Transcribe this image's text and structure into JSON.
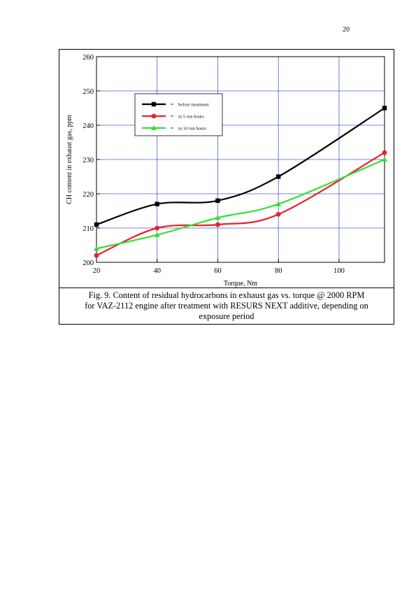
{
  "page": {
    "number": "20"
  },
  "caption": {
    "line1": "Fig. 9. Content of residual hydrocarbons in exhaust gas vs. torque @ 2000 RPM",
    "line2": "for VAZ-2112 engine after treatment with RESURS NEXT additive, depending on",
    "line3": "exposure period"
  },
  "chart_data": {
    "type": "line",
    "title": "",
    "xlabel": "Torque, Nm",
    "ylabel": "CH content in exhaust gas, ppm",
    "xlim": [
      20,
      115
    ],
    "ylim": [
      200,
      260
    ],
    "x_ticks": [
      20,
      40,
      60,
      80,
      100
    ],
    "y_ticks": [
      200,
      210,
      220,
      230,
      240,
      250,
      260
    ],
    "grid": true,
    "legend_position": "top-left",
    "series": [
      {
        "name": "before treatment",
        "color": "#000000",
        "marker": "square",
        "x": [
          20,
          40,
          60,
          80,
          115
        ],
        "values": [
          211,
          217,
          218,
          225,
          245
        ]
      },
      {
        "name": "in 5 run hours",
        "color": "#e8202a",
        "marker": "circle",
        "x": [
          20,
          40,
          60,
          80,
          115
        ],
        "values": [
          202,
          210,
          211,
          214,
          232
        ]
      },
      {
        "name": "in 10 run hours",
        "color": "#33e033",
        "marker": "triangle",
        "x": [
          20,
          40,
          60,
          80,
          115
        ],
        "values": [
          204,
          208,
          213,
          217,
          230
        ]
      }
    ]
  }
}
